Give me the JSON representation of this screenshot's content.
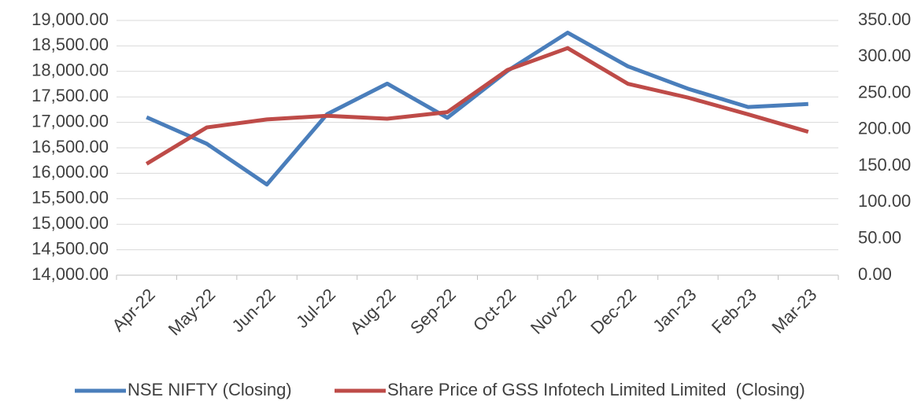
{
  "chart_data": {
    "type": "line",
    "categories": [
      "Apr-22",
      "May-22",
      "Jun-22",
      "Jul-22",
      "Aug-22",
      "Sep-22",
      "Oct-22",
      "Nov-22",
      "Dec-22",
      "Jan-23",
      "Feb-23",
      "Mar-23"
    ],
    "series": [
      {
        "name": "NSE NIFTY (Closing)",
        "color": "#4a7ebb",
        "values": [
          17100,
          16580,
          15780,
          17160,
          17760,
          17090,
          18010,
          18760,
          18100,
          17660,
          17300,
          17360
        ]
      },
      {
        "name": "Share Price of GSS Infotech Limited Limited  (Closing)",
        "color": "#be4b48",
        "axis": "y2",
        "values": [
          153,
          203,
          214,
          219,
          215,
          224,
          282,
          312,
          263,
          244,
          221,
          197
        ]
      }
    ],
    "ylim": [
      14000,
      19000
    ],
    "yticks": [
      {
        "value": 14000,
        "label": "14,000.00"
      },
      {
        "value": 14500,
        "label": "14,500.00"
      },
      {
        "value": 15000,
        "label": "15,000.00"
      },
      {
        "value": 15500,
        "label": "15,500.00"
      },
      {
        "value": 16000,
        "label": "16,000.00"
      },
      {
        "value": 16500,
        "label": "16,500.00"
      },
      {
        "value": 17000,
        "label": "17,000.00"
      },
      {
        "value": 17500,
        "label": "17,500.00"
      },
      {
        "value": 18000,
        "label": "18,000.00"
      },
      {
        "value": 18500,
        "label": "18,500.00"
      },
      {
        "value": 19000,
        "label": "19,000.00"
      }
    ],
    "y2lim": [
      0,
      350
    ],
    "y2ticks": [
      {
        "value": 0,
        "label": "0.00"
      },
      {
        "value": 50,
        "label": "50.00"
      },
      {
        "value": 100,
        "label": "100.00"
      },
      {
        "value": 150,
        "label": "150.00"
      },
      {
        "value": 200,
        "label": "200.00"
      },
      {
        "value": 250,
        "label": "250.00"
      },
      {
        "value": 300,
        "label": "300.00"
      },
      {
        "value": 350,
        "label": "350.00"
      }
    ],
    "grid": true,
    "legend": "bottom"
  }
}
